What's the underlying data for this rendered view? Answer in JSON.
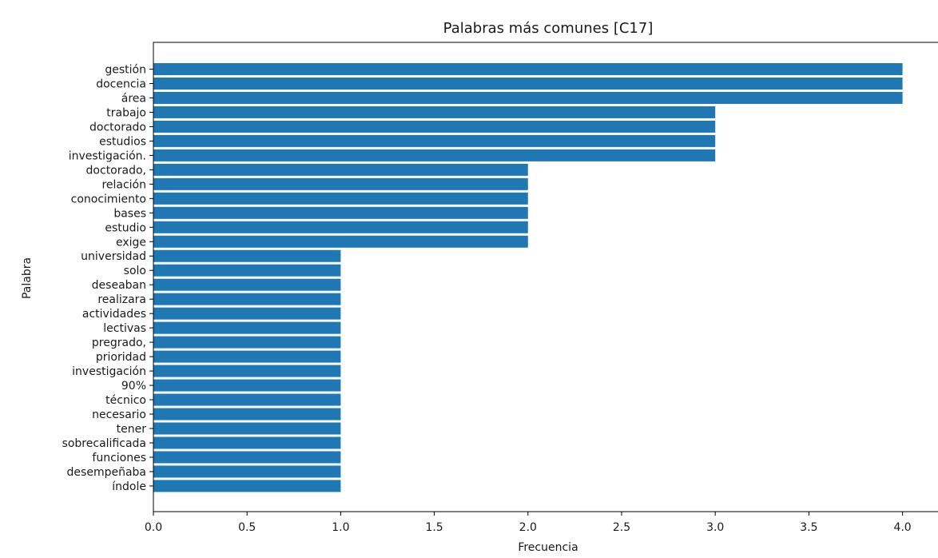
{
  "chart_data": {
    "type": "bar",
    "orientation": "horizontal",
    "title": "Palabras más comunes [C17]",
    "xlabel": "Frecuencia",
    "ylabel": "Palabra",
    "xlim": [
      0,
      4.2
    ],
    "xticks": [
      "0.0",
      "0.5",
      "1.0",
      "1.5",
      "2.0",
      "2.5",
      "3.0",
      "3.5",
      "4.0"
    ],
    "grid": false,
    "bar_color": "#1f77b4",
    "categories": [
      "gestión",
      "docencia",
      "área",
      "trabajo",
      "doctorado",
      "estudios",
      "investigación.",
      "doctorado,",
      "relación",
      "conocimiento",
      "bases",
      "estudio",
      "exige",
      "universidad",
      "solo",
      "deseaban",
      "realizara",
      "actividades",
      "lectivas",
      "pregrado,",
      "prioridad",
      "investigación",
      "90%",
      "técnico",
      "necesario",
      "tener",
      "sobrecalificada",
      "funciones",
      "desempeñaba",
      "índole"
    ],
    "values": [
      4,
      4,
      4,
      3,
      3,
      3,
      3,
      2,
      2,
      2,
      2,
      2,
      2,
      1,
      1,
      1,
      1,
      1,
      1,
      1,
      1,
      1,
      1,
      1,
      1,
      1,
      1,
      1,
      1,
      1
    ]
  }
}
